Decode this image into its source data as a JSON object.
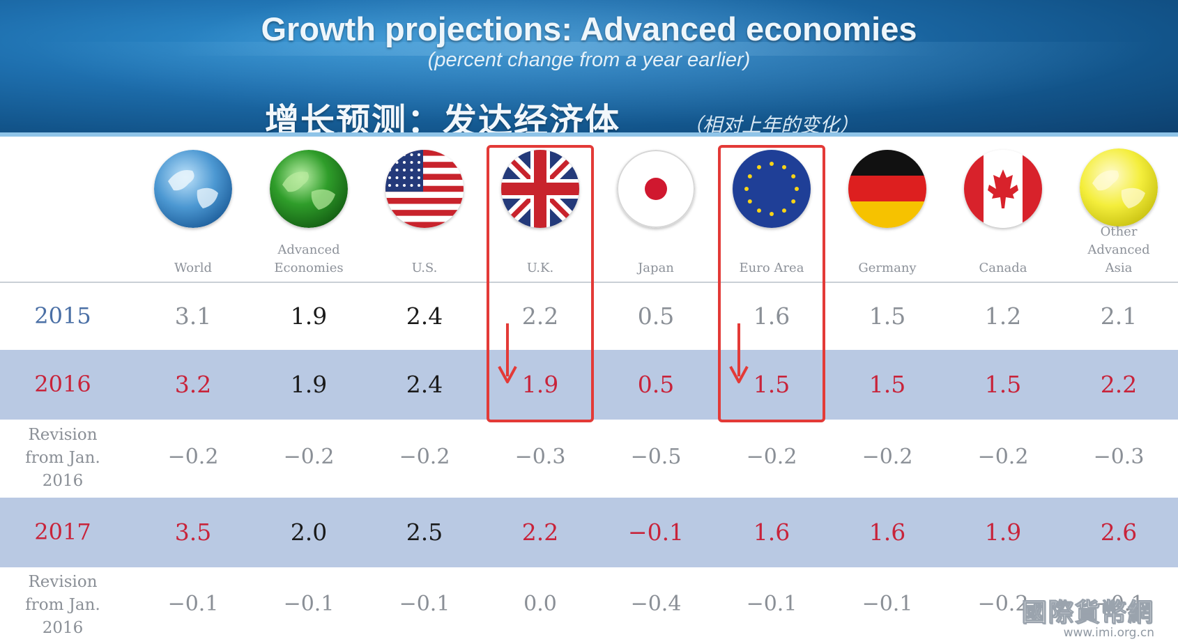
{
  "header": {
    "title": "Growth projections:  Advanced economies",
    "subtitle": "(percent change from a year earlier)",
    "title_cn": "增长预测：发达经济体",
    "subtitle_cn": "（相对上年的变化）"
  },
  "columns": [
    {
      "label_lines": [
        "World"
      ],
      "icon": "world-globe-icon"
    },
    {
      "label_lines": [
        "Advanced",
        "Economies"
      ],
      "icon": "green-globe-icon"
    },
    {
      "label_lines": [
        "U.S."
      ],
      "icon": "us-flag-icon"
    },
    {
      "label_lines": [
        "U.K."
      ],
      "icon": "uk-flag-icon"
    },
    {
      "label_lines": [
        "Japan"
      ],
      "icon": "japan-flag-icon"
    },
    {
      "label_lines": [
        "Euro Area"
      ],
      "icon": "eu-flag-icon"
    },
    {
      "label_lines": [
        "Germany"
      ],
      "icon": "germany-flag-icon"
    },
    {
      "label_lines": [
        "Canada"
      ],
      "icon": "canada-flag-icon"
    },
    {
      "label_lines": [
        "Other",
        "Advanced",
        "Asia"
      ],
      "icon": "yellow-globe-icon"
    }
  ],
  "rows": [
    {
      "label_lines": [
        "2015"
      ],
      "style": "year-blue",
      "values": [
        "3.1",
        "1.9",
        "2.4",
        "2.2",
        "0.5",
        "1.6",
        "1.5",
        "1.2",
        "2.1"
      ]
    },
    {
      "label_lines": [
        "2016"
      ],
      "style": "year-red",
      "values": [
        "3.2",
        "1.9",
        "2.4",
        "1.9",
        "0.5",
        "1.5",
        "1.5",
        "1.5",
        "2.2"
      ]
    },
    {
      "label_lines": [
        "Revision",
        "from Jan.",
        "2016"
      ],
      "style": "revision",
      "values": [
        "−0.2",
        "−0.2",
        "−0.2",
        "−0.3",
        "−0.5",
        "−0.2",
        "−0.2",
        "−0.2",
        "−0.3"
      ]
    },
    {
      "label_lines": [
        "2017"
      ],
      "style": "year-red",
      "values": [
        "3.5",
        "2.0",
        "2.5",
        "2.2",
        "−0.1",
        "1.6",
        "1.6",
        "1.9",
        "2.6"
      ]
    },
    {
      "label_lines": [
        "Revision",
        "from Jan.",
        "2016"
      ],
      "style": "revision",
      "values": [
        "−0.1",
        "−0.1",
        "−0.1",
        "0.0",
        "−0.4",
        "−0.1",
        "−0.1",
        "−0.2",
        "−0.1"
      ]
    }
  ],
  "highlights": [
    {
      "column": "U.K.",
      "note": "down-arrow"
    },
    {
      "column": "Euro Area",
      "note": "down-arrow"
    }
  ],
  "colors": {
    "year_blue": "#4a6fa5",
    "year_red": "#c8233a",
    "value_black": "#1a1a1a",
    "value_gray": "#8a8f96",
    "value_muted": "#a9aeb5",
    "band": "#b9c9e3",
    "highlight": "#e33a37"
  },
  "watermark": {
    "main": "國際貨幣網",
    "sub": "www.imi.org.cn"
  },
  "chart_data": {
    "type": "table",
    "title": "Growth projections:  Advanced economies",
    "subtitle": "(percent change from a year earlier)",
    "columns": [
      "World",
      "Advanced Economies",
      "U.S.",
      "U.K.",
      "Japan",
      "Euro Area",
      "Germany",
      "Canada",
      "Other Advanced Asia"
    ],
    "rows": [
      {
        "label": "2015",
        "values": [
          3.1,
          1.9,
          2.4,
          2.2,
          0.5,
          1.6,
          1.5,
          1.2,
          2.1
        ]
      },
      {
        "label": "2016",
        "values": [
          3.2,
          1.9,
          2.4,
          1.9,
          0.5,
          1.5,
          1.5,
          1.5,
          2.2
        ]
      },
      {
        "label": "Revision from Jan. 2016",
        "values": [
          -0.2,
          -0.2,
          -0.2,
          -0.3,
          -0.5,
          -0.2,
          -0.2,
          -0.2,
          -0.3
        ]
      },
      {
        "label": "2017",
        "values": [
          3.5,
          2.0,
          2.5,
          2.2,
          -0.1,
          1.6,
          1.6,
          1.9,
          2.6
        ]
      },
      {
        "label": "Revision from Jan. 2016",
        "values": [
          -0.1,
          -0.1,
          -0.1,
          0.0,
          -0.4,
          -0.1,
          -0.1,
          -0.2,
          -0.1
        ]
      }
    ]
  }
}
